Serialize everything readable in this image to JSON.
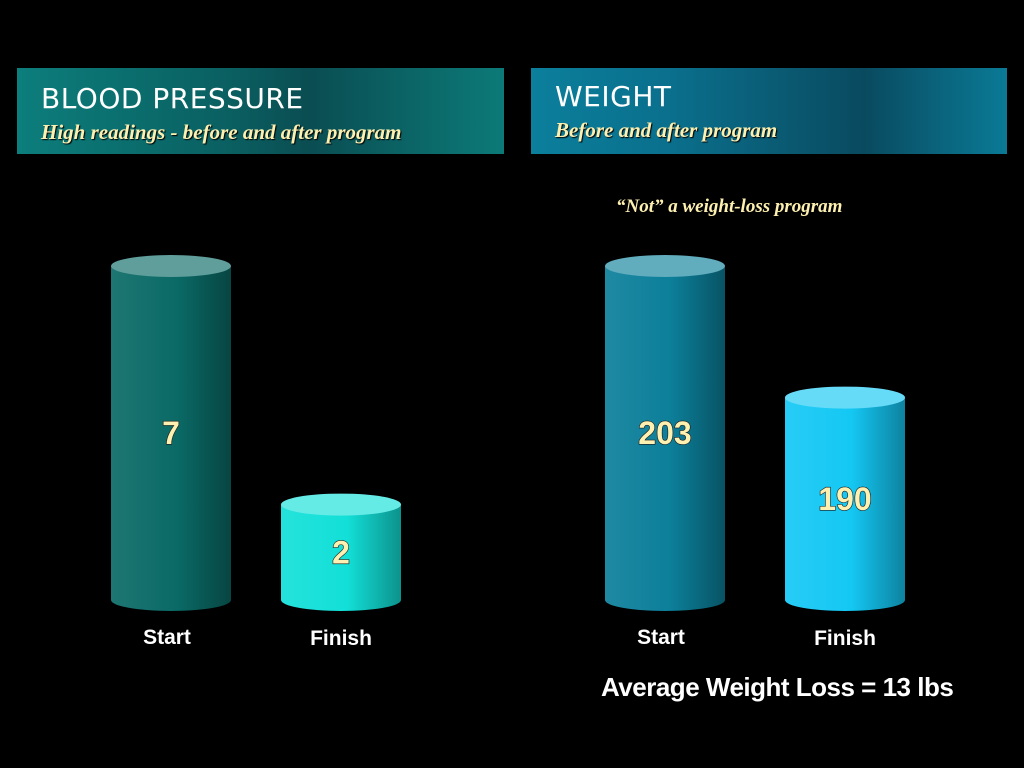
{
  "panels": {
    "blood_pressure": {
      "title": "BLOOD PRESSURE",
      "subtitle": "High readings - before and after program"
    },
    "weight": {
      "title": "WEIGHT",
      "subtitle": "Before and after program",
      "note": "“Not” a weight-loss program",
      "summary": "Average Weight Loss = 13 lbs"
    }
  },
  "colors": {
    "bp_start_bar": "#0a6a66",
    "bp_finish_bar": "#12e0d8",
    "wt_start_bar": "#0c7f9a",
    "wt_finish_bar": "#14c8f4",
    "value_text": "#fdf0b0",
    "background": "#000000"
  },
  "chart_data": [
    {
      "type": "bar",
      "title": "BLOOD PRESSURE",
      "subtitle": "High readings - before and after program",
      "categories": [
        "Start",
        "Finish"
      ],
      "values": [
        7,
        2
      ],
      "data_labels": [
        "7",
        "2"
      ],
      "bar_shape": "cylinder",
      "grid": false
    },
    {
      "type": "bar",
      "title": "WEIGHT",
      "subtitle": "Before and after program",
      "categories": [
        "Start",
        "Finish"
      ],
      "values": [
        203,
        190
      ],
      "data_labels": [
        "203",
        "190"
      ],
      "bar_shape": "cylinder",
      "grid": false
    }
  ]
}
